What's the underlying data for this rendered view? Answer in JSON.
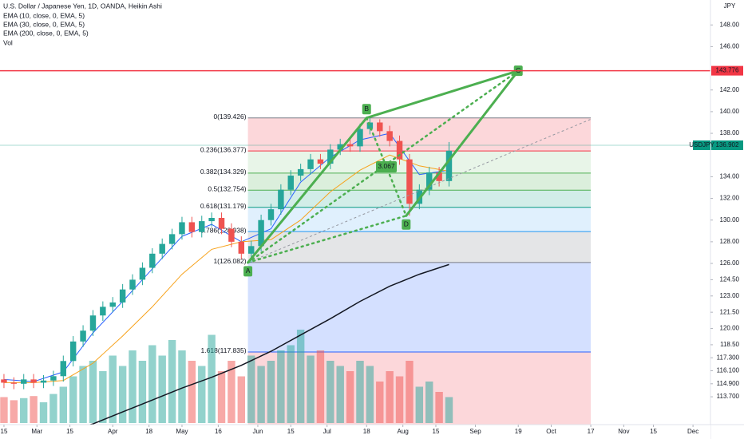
{
  "chart_data": {
    "type": "candlestick",
    "title": "U.S. Dollar / Japanese Yen, 1D, OANDA, Heikin Ashi",
    "currency": "JPY",
    "volume_label": "Vol",
    "up_color": "#26a69a",
    "down_color": "#ef5350",
    "x": [
      0,
      3,
      6,
      9,
      12,
      15,
      18,
      21,
      24,
      27,
      30,
      33,
      36,
      39,
      42,
      45,
      48,
      51,
      54,
      57,
      60,
      63,
      66,
      69,
      72,
      75,
      78,
      81,
      84,
      87,
      90,
      93,
      96,
      99,
      102,
      105,
      108,
      111,
      114,
      117,
      120,
      123,
      126,
      129,
      132,
      135
    ],
    "open": [
      115.3,
      115.0,
      114.9,
      115.3,
      115.0,
      115.2,
      115.6,
      117.0,
      118.8,
      119.8,
      121.2,
      122.0,
      122.4,
      123.6,
      124.5,
      125.6,
      126.9,
      127.8,
      128.7,
      129.8,
      128.9,
      129.9,
      130.2,
      129.2,
      128.0,
      126.9,
      127.6,
      130.0,
      131.0,
      132.8,
      134.1,
      134.7,
      135.6,
      135.2,
      136.5,
      137.0,
      136.8,
      138.4,
      139.0,
      138.2,
      137.3,
      135.6,
      131.5,
      132.8,
      134.4,
      133.6
    ],
    "high": [
      115.8,
      115.5,
      115.8,
      115.8,
      115.7,
      116.1,
      117.5,
      119.3,
      120.3,
      121.7,
      122.5,
      122.9,
      124.1,
      125.0,
      126.1,
      127.4,
      128.3,
      129.2,
      130.3,
      130.3,
      130.4,
      130.7,
      130.7,
      129.7,
      128.5,
      128.1,
      130.5,
      131.5,
      133.3,
      134.6,
      135.2,
      136.1,
      136.1,
      137.0,
      137.5,
      137.5,
      138.9,
      139.4,
      139.3,
      138.7,
      137.8,
      136.1,
      133.3,
      134.9,
      134.9,
      137.2
    ],
    "low": [
      114.5,
      114.4,
      114.4,
      114.5,
      114.5,
      114.7,
      115.1,
      116.5,
      118.3,
      119.3,
      120.7,
      121.5,
      121.9,
      123.1,
      124.0,
      125.1,
      126.4,
      127.3,
      128.2,
      128.4,
      128.4,
      129.4,
      128.7,
      127.5,
      126.4,
      126.1,
      127.1,
      129.5,
      130.5,
      132.3,
      133.6,
      134.2,
      134.7,
      134.7,
      136.0,
      136.3,
      136.3,
      137.9,
      137.7,
      136.8,
      135.1,
      130.4,
      131.0,
      132.3,
      133.1,
      133.1
    ],
    "close": [
      115.0,
      114.9,
      115.3,
      115.0,
      115.2,
      115.6,
      117.0,
      118.8,
      119.8,
      121.2,
      122.0,
      122.4,
      123.6,
      124.5,
      125.6,
      126.9,
      127.8,
      128.7,
      129.8,
      128.9,
      129.9,
      130.2,
      129.2,
      128.0,
      126.9,
      127.6,
      130.0,
      131.0,
      132.8,
      134.1,
      134.7,
      135.6,
      135.2,
      136.5,
      137.0,
      136.8,
      138.4,
      139.0,
      138.2,
      137.3,
      135.6,
      131.5,
      132.8,
      134.4,
      133.6,
      136.4
    ],
    "volume": [
      25,
      22,
      24,
      26,
      20,
      28,
      35,
      45,
      55,
      60,
      50,
      65,
      55,
      70,
      60,
      75,
      65,
      80,
      70,
      60,
      55,
      85,
      50,
      60,
      45,
      65,
      55,
      60,
      70,
      75,
      90,
      65,
      70,
      60,
      55,
      50,
      60,
      55,
      40,
      50,
      45,
      60,
      35,
      40,
      30,
      25
    ],
    "vlim": [
      0,
      100
    ],
    "series": [
      {
        "name": "EMA (10, close, 0, EMA, 5)",
        "color": "#2962ff",
        "x": [
          0,
          9,
          18,
          27,
          36,
          45,
          54,
          63,
          72,
          81,
          90,
          99,
          108,
          117,
          126,
          135
        ],
        "values": [
          115.3,
          115.1,
          116.0,
          119.6,
          122.5,
          125.5,
          128.5,
          129.6,
          128.0,
          129.2,
          133.5,
          135.8,
          137.4,
          138.0,
          134.2,
          134.6
        ]
      },
      {
        "name": "EMA (30, close, 0, EMA, 5)",
        "color": "#f7a21b",
        "x": [
          0,
          9,
          18,
          27,
          36,
          45,
          54,
          63,
          72,
          81,
          90,
          99,
          108,
          117,
          126,
          135
        ],
        "values": [
          115.0,
          115.0,
          115.2,
          116.8,
          119.3,
          122.0,
          125.0,
          127.3,
          128.0,
          128.2,
          130.0,
          132.6,
          134.6,
          136.0,
          135.0,
          134.5
        ]
      },
      {
        "name": "EMA (200, close, 0, EMA, 5)",
        "color": "#131722",
        "x": [
          0,
          9,
          18,
          27,
          36,
          45,
          54,
          63,
          72,
          81,
          90,
          99,
          108,
          117,
          126,
          135
        ],
        "values": [
          null,
          null,
          110.4,
          111.2,
          112.3,
          113.4,
          114.5,
          115.5,
          116.6,
          117.9,
          119.4,
          120.9,
          122.5,
          123.9,
          125.0,
          125.9
        ]
      }
    ],
    "fib": {
      "x_range": [
        74,
        178
      ],
      "levels": [
        {
          "label": "0(139.426)",
          "value": 139.426,
          "color": "#787b86",
          "fill": "rgba(242,54,69,0.2)"
        },
        {
          "label": "0.236(136.377)",
          "value": 136.377,
          "color": "#f23645",
          "fill": "rgba(76,175,80,0.13)"
        },
        {
          "label": "0.382(134.329)",
          "value": 134.329,
          "color": "#4caf50",
          "fill": "rgba(76,175,80,0.2)"
        },
        {
          "label": "0.5(132.754)",
          "value": 132.754,
          "color": "#4caf50",
          "fill": "rgba(8,153,129,0.18)"
        },
        {
          "label": "0.618(131.179)",
          "value": 131.179,
          "color": "#089981",
          "fill": "rgba(33,150,243,0.14)"
        },
        {
          "label": "0.786(128.938)",
          "value": 128.938,
          "color": "#2196f3",
          "fill": "rgba(120,123,134,0.2)"
        },
        {
          "label": "1(126.082)",
          "value": 126.082,
          "color": "#787b86",
          "fill": "rgba(41,98,255,0.2)"
        },
        {
          "label": "1.618(117.835)",
          "value": 117.835,
          "color": "#2962ff",
          "fill": "rgba(242,54,69,0.2)"
        }
      ]
    },
    "pattern": {
      "color": "#4caf50",
      "points": [
        {
          "label": "A",
          "x": 74,
          "value": 126.082
        },
        {
          "label": "B",
          "x": 110,
          "value": 139.426
        },
        {
          "label": "C",
          "x": 156,
          "value": 143.776
        },
        {
          "label": "D",
          "x": 122,
          "value": 130.4
        }
      ],
      "ratio": 3.067
    },
    "trend_line": {
      "x": [
        74,
        178
      ],
      "values": [
        126.082,
        139.3
      ],
      "color": "#9598a1"
    },
    "price_line": {
      "value": 143.776,
      "color": "#f23645"
    },
    "last_price": {
      "name": "USDJPY",
      "value": 136.902,
      "color": "#089981"
    },
    "xlim": [
      -1.2,
      214.3
    ],
    "ylim": [
      110.1,
      150.3
    ],
    "yticks": [
      {
        "value": 148,
        "label": "148.00"
      },
      {
        "value": 146,
        "label": "146.00"
      },
      {
        "value": 142,
        "label": "142.00"
      },
      {
        "value": 140,
        "label": "140.00"
      },
      {
        "value": 138,
        "label": "138.00"
      },
      {
        "value": 134,
        "label": "134.00"
      },
      {
        "value": 132,
        "label": "132.00"
      },
      {
        "value": 130,
        "label": "130.00"
      },
      {
        "value": 128,
        "label": "128.00"
      },
      {
        "value": 126,
        "label": "126.00"
      },
      {
        "value": 124.5,
        "label": "124.50"
      },
      {
        "value": 123,
        "label": "123.00"
      },
      {
        "value": 121.5,
        "label": "121.50"
      },
      {
        "value": 120,
        "label": "120.00"
      },
      {
        "value": 118.5,
        "label": "118.50"
      },
      {
        "value": 117.3,
        "label": "117.300"
      },
      {
        "value": 116.1,
        "label": "116.100"
      },
      {
        "value": 114.9,
        "label": "114.900"
      },
      {
        "value": 113.7,
        "label": "113.700"
      }
    ],
    "xticks": [
      {
        "value": 0,
        "label": "15"
      },
      {
        "value": 10,
        "label": "Mar"
      },
      {
        "value": 20,
        "label": "15"
      },
      {
        "value": 33,
        "label": "Apr"
      },
      {
        "value": 44,
        "label": "18"
      },
      {
        "value": 54,
        "label": "May"
      },
      {
        "value": 65,
        "label": "16"
      },
      {
        "value": 77,
        "label": "Jun"
      },
      {
        "value": 87,
        "label": "15"
      },
      {
        "value": 98,
        "label": "Jul"
      },
      {
        "value": 110,
        "label": "18"
      },
      {
        "value": 121,
        "label": "Aug"
      },
      {
        "value": 131,
        "label": "15"
      },
      {
        "value": 143,
        "label": "Sep"
      },
      {
        "value": 156,
        "label": "19"
      },
      {
        "value": 166,
        "label": "Oct"
      },
      {
        "value": 178,
        "label": "17"
      },
      {
        "value": 188,
        "label": "Nov"
      },
      {
        "value": 197,
        "label": "15"
      },
      {
        "value": 209,
        "label": "Dec"
      }
    ],
    "grid": false
  }
}
